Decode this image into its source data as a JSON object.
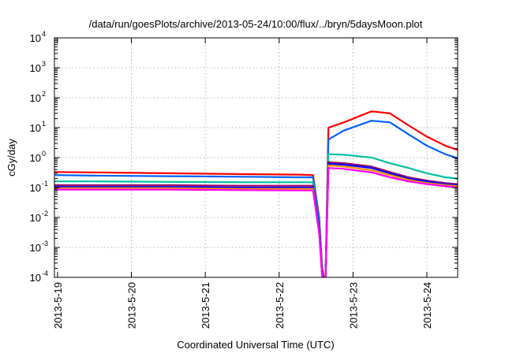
{
  "chart_data": {
    "type": "line",
    "title": "/data/run/goesPlots/archive/2013-05-24/10:00/flux/../bryn/5daysMoon.plot",
    "xlabel": "Coordinated Universal Time (UTC)",
    "ylabel": "cGy/day",
    "xlim": [
      "2013-05-18 23:00",
      "2013-05-24 10:00"
    ],
    "ylim": [
      0.0001,
      10000
    ],
    "yscale": "log",
    "grid": true,
    "x_ticks": [
      "2013-5-19",
      "2013-5-20",
      "2013-5-21",
      "2013-5-22",
      "2013-5-23",
      "2013-5-24"
    ],
    "y_ticks": [
      {
        "value": 0.0001,
        "mantissa": "10",
        "exp": "-4"
      },
      {
        "value": 0.001,
        "mantissa": "10",
        "exp": "-3"
      },
      {
        "value": 0.01,
        "mantissa": "10",
        "exp": "-2"
      },
      {
        "value": 0.1,
        "mantissa": "10",
        "exp": "-1"
      },
      {
        "value": 1,
        "mantissa": "10",
        "exp": "0"
      },
      {
        "value": 10,
        "mantissa": "10",
        "exp": "1"
      },
      {
        "value": 100,
        "mantissa": "10",
        "exp": "2"
      },
      {
        "value": 1000,
        "mantissa": "10",
        "exp": "3"
      },
      {
        "value": 10000,
        "mantissa": "10",
        "exp": "4"
      }
    ],
    "series": [
      {
        "color": "#ff0000",
        "x": [
          "2013-05-18 23:00",
          "2013-05-19 12:00",
          "2013-05-20 12:00",
          "2013-05-21 12:00",
          "2013-05-22 06:00",
          "2013-05-22 11:00",
          "2013-05-22 13:00",
          "2013-05-22 14:00",
          "2013-05-22 15:00",
          "2013-05-22 16:00",
          "2013-05-22 21:00",
          "2013-05-23 06:00",
          "2013-05-23 12:00",
          "2013-05-23 18:00",
          "2013-05-24 00:00",
          "2013-05-24 06:00",
          "2013-05-24 10:00"
        ],
        "y": [
          0.33,
          0.32,
          0.3,
          0.28,
          0.27,
          0.26,
          0.01,
          0.0002,
          5e-05,
          10,
          15,
          35,
          30,
          12,
          5,
          2.5,
          1.8
        ]
      },
      {
        "color": "#0060ff",
        "x": [
          "2013-05-18 23:00",
          "2013-05-19 12:00",
          "2013-05-20 12:00",
          "2013-05-21 12:00",
          "2013-05-22 06:00",
          "2013-05-22 11:00",
          "2013-05-22 13:00",
          "2013-05-22 14:00",
          "2013-05-22 15:00",
          "2013-05-22 16:00",
          "2013-05-22 21:00",
          "2013-05-23 06:00",
          "2013-05-23 12:00",
          "2013-05-23 18:00",
          "2013-05-24 00:00",
          "2013-05-24 06:00",
          "2013-05-24 10:00"
        ],
        "y": [
          0.26,
          0.25,
          0.24,
          0.23,
          0.22,
          0.22,
          0.008,
          0.00015,
          5e-05,
          4,
          8,
          17,
          15,
          6,
          2.5,
          1.3,
          0.95
        ]
      },
      {
        "color": "#00c0a0",
        "x": [
          "2013-05-18 23:00",
          "2013-05-19 12:00",
          "2013-05-20 12:00",
          "2013-05-21 12:00",
          "2013-05-22 06:00",
          "2013-05-22 11:00",
          "2013-05-22 13:00",
          "2013-05-22 14:00",
          "2013-05-22 15:00",
          "2013-05-22 16:00",
          "2013-05-22 21:00",
          "2013-05-23 06:00",
          "2013-05-23 12:00",
          "2013-05-23 18:00",
          "2013-05-24 00:00",
          "2013-05-24 06:00",
          "2013-05-24 10:00"
        ],
        "y": [
          0.16,
          0.16,
          0.155,
          0.15,
          0.15,
          0.15,
          0.005,
          0.0001,
          5e-05,
          1.3,
          1.25,
          1.0,
          0.65,
          0.45,
          0.3,
          0.22,
          0.2
        ]
      },
      {
        "color": "#a00060",
        "x": [
          "2013-05-18 23:00",
          "2013-05-19 12:00",
          "2013-05-20 12:00",
          "2013-05-21 12:00",
          "2013-05-22 06:00",
          "2013-05-22 11:00",
          "2013-05-22 13:00",
          "2013-05-22 14:00",
          "2013-05-22 15:00",
          "2013-05-22 16:00",
          "2013-05-22 21:00",
          "2013-05-23 06:00",
          "2013-05-23 12:00",
          "2013-05-23 18:00",
          "2013-05-24 00:00",
          "2013-05-24 06:00",
          "2013-05-24 10:00"
        ],
        "y": [
          0.12,
          0.12,
          0.12,
          0.115,
          0.115,
          0.115,
          0.004,
          0.0001,
          5e-05,
          0.7,
          0.65,
          0.5,
          0.33,
          0.22,
          0.17,
          0.14,
          0.13
        ]
      },
      {
        "color": "#0000ff",
        "x": [
          "2013-05-18 23:00",
          "2013-05-19 12:00",
          "2013-05-20 12:00",
          "2013-05-21 12:00",
          "2013-05-22 06:00",
          "2013-05-22 11:00",
          "2013-05-22 13:00",
          "2013-05-22 14:00",
          "2013-05-22 15:00",
          "2013-05-22 16:00",
          "2013-05-22 21:00",
          "2013-05-23 06:00",
          "2013-05-23 12:00",
          "2013-05-23 18:00",
          "2013-05-24 00:00",
          "2013-05-24 06:00",
          "2013-05-24 10:00"
        ],
        "y": [
          0.105,
          0.105,
          0.105,
          0.1,
          0.1,
          0.1,
          0.004,
          0.0001,
          5e-05,
          0.62,
          0.58,
          0.45,
          0.3,
          0.2,
          0.16,
          0.13,
          0.12
        ]
      },
      {
        "color": "#ff9000",
        "x": [
          "2013-05-18 23:00",
          "2013-05-19 12:00",
          "2013-05-20 12:00",
          "2013-05-21 12:00",
          "2013-05-22 06:00",
          "2013-05-22 11:00",
          "2013-05-22 13:00",
          "2013-05-22 14:00",
          "2013-05-22 15:00",
          "2013-05-22 16:00",
          "2013-05-22 21:00",
          "2013-05-23 06:00",
          "2013-05-23 12:00",
          "2013-05-23 18:00",
          "2013-05-24 00:00",
          "2013-05-24 06:00",
          "2013-05-24 10:00"
        ],
        "y": [
          0.095,
          0.095,
          0.095,
          0.09,
          0.09,
          0.09,
          0.003,
          0.0001,
          5e-05,
          0.55,
          0.5,
          0.38,
          0.26,
          0.18,
          0.14,
          0.12,
          0.11
        ]
      },
      {
        "color": "#ff00ff",
        "x": [
          "2013-05-18 23:00",
          "2013-05-19 12:00",
          "2013-05-20 12:00",
          "2013-05-21 12:00",
          "2013-05-22 06:00",
          "2013-05-22 11:00",
          "2013-05-22 13:00",
          "2013-05-22 14:00",
          "2013-05-22 15:00",
          "2013-05-22 16:00",
          "2013-05-22 21:00",
          "2013-05-23 06:00",
          "2013-05-23 12:00",
          "2013-05-23 18:00",
          "2013-05-24 00:00",
          "2013-05-24 06:00",
          "2013-05-24 10:00"
        ],
        "y": [
          0.085,
          0.085,
          0.085,
          0.082,
          0.08,
          0.08,
          0.003,
          0.0001,
          5e-05,
          0.45,
          0.42,
          0.32,
          0.22,
          0.16,
          0.13,
          0.11,
          0.1
        ]
      }
    ]
  }
}
